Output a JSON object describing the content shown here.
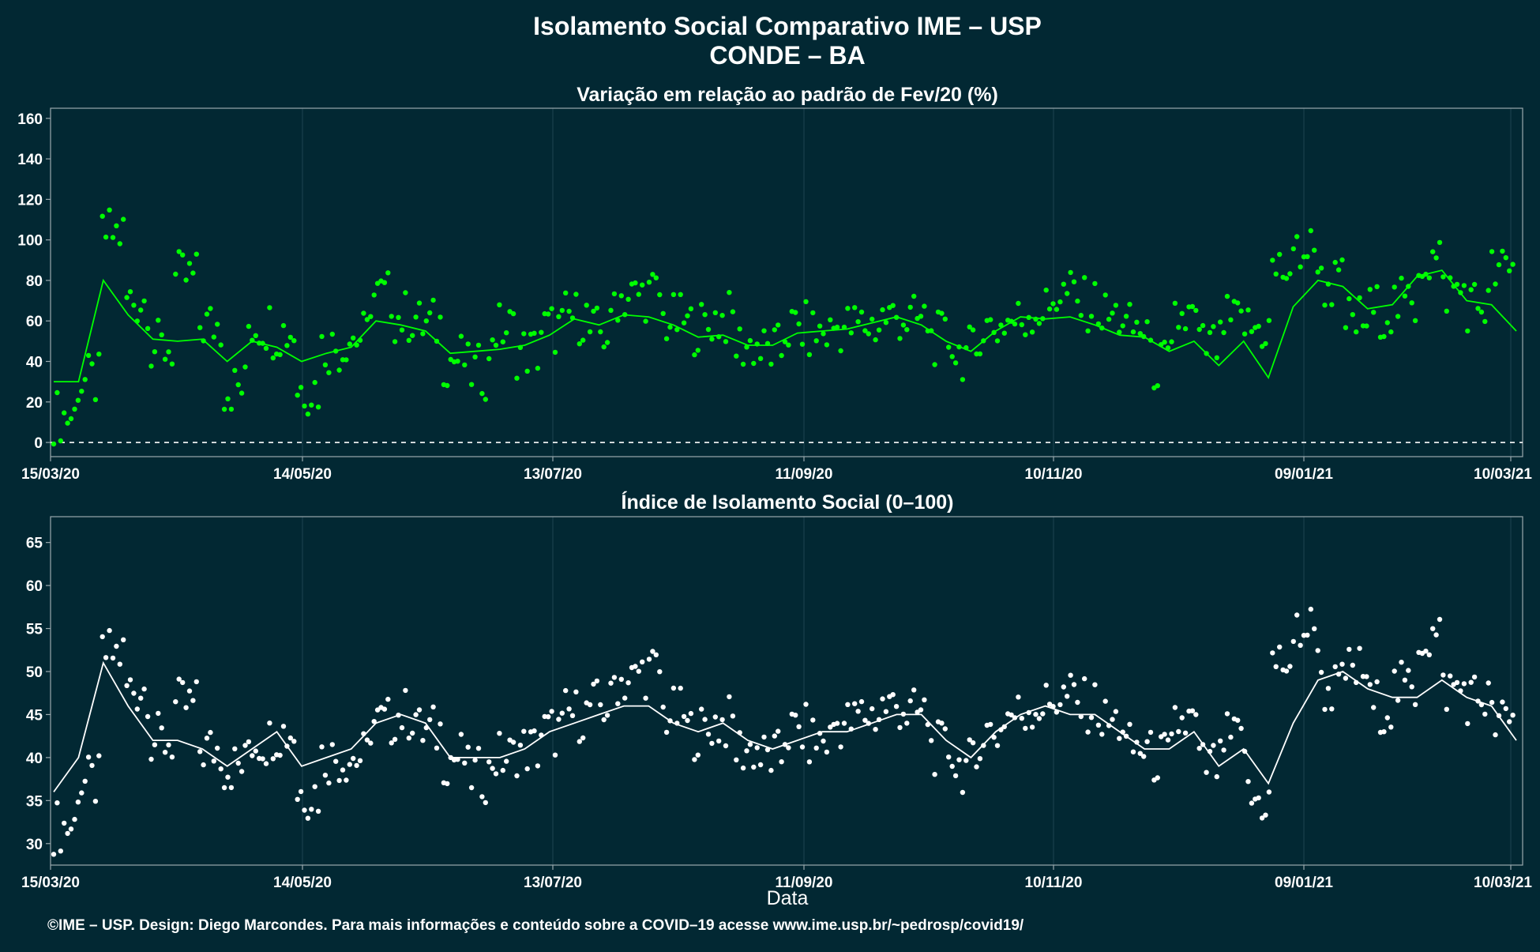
{
  "page": {
    "title_line1": "Isolamento Social Comparativo IME – USP",
    "title_line2": "CONDE – BA",
    "xlabel": "Data",
    "footer": "©IME – USP. Design: Diego Marcondes. Para mais informações e conteúdo sobre a COVID–19 acesse www.ime.usp.br/~pedrosp/covid19/"
  },
  "colors": {
    "background": "#022833",
    "grid": "#1e4452",
    "top_series": "#00ff00",
    "bottom_series": "#ffffff"
  },
  "x_ticks": [
    "15/03/20",
    "14/05/20",
    "13/07/20",
    "11/09/20",
    "10/11/20",
    "09/01/21",
    "10/03/21"
  ],
  "chart_data": [
    {
      "type": "scatter",
      "title": "Variação em relação ao padrão de Fev/20 (%)",
      "x_range": [
        "2020-03-15",
        "2021-03-10"
      ],
      "ylim": [
        -7,
        165
      ],
      "yticks": [
        0,
        20,
        40,
        60,
        80,
        100,
        120,
        140,
        160
      ],
      "reference_line": 0,
      "grid": true,
      "series": [
        {
          "kind": "points",
          "weekly_values": [
            13,
            30,
            103,
            70,
            47,
            81,
            58,
            27,
            58,
            55,
            27,
            47,
            52,
            72,
            62,
            58,
            41,
            35,
            56,
            45,
            56,
            62,
            54,
            72,
            73,
            60,
            57,
            61,
            48,
            45,
            56,
            54,
            57,
            58,
            62,
            60,
            51,
            44,
            57,
            60,
            65,
            73,
            68,
            62,
            56,
            38,
            61,
            47,
            59,
            56,
            85,
            95,
            78,
            60,
            65,
            68,
            90,
            75,
            68,
            84
          ]
        },
        {
          "kind": "moving-average",
          "weekly_values": [
            30,
            30,
            80,
            63,
            51,
            50,
            51,
            40,
            50,
            47,
            40,
            44,
            47,
            60,
            58,
            55,
            44,
            45,
            46,
            48,
            53,
            61,
            58,
            63,
            62,
            58,
            52,
            53,
            48,
            48,
            54,
            55,
            56,
            59,
            62,
            58,
            50,
            45,
            55,
            62,
            61,
            62,
            58,
            53,
            52,
            45,
            50,
            38,
            50,
            32,
            67,
            80,
            77,
            66,
            68,
            82,
            85,
            70,
            68,
            55
          ]
        }
      ]
    },
    {
      "type": "scatter",
      "title": "Índice de Isolamento Social (0–100)",
      "x_range": [
        "2020-03-15",
        "2021-03-10"
      ],
      "ylim": [
        27.5,
        68
      ],
      "yticks": [
        30,
        35,
        40,
        45,
        50,
        55,
        60,
        65
      ],
      "grid": true,
      "series": [
        {
          "kind": "points",
          "weekly_values": [
            32,
            37,
            52,
            48,
            42,
            46,
            41,
            39,
            42,
            43,
            36,
            40,
            40,
            44,
            45,
            43,
            40,
            38,
            40,
            41,
            43,
            45,
            46,
            49,
            50,
            45,
            43,
            44,
            41,
            40,
            43,
            42,
            44,
            45,
            46,
            45,
            41,
            39,
            43,
            45,
            46,
            47,
            46,
            44,
            41,
            40,
            44,
            39,
            42,
            35,
            51,
            55,
            48,
            50,
            46,
            48,
            54,
            48,
            47,
            44
          ]
        },
        {
          "kind": "moving-average",
          "weekly_values": [
            36,
            40,
            51,
            46,
            42,
            42,
            41,
            39,
            41,
            43,
            39,
            40,
            41,
            44,
            45,
            44,
            40,
            40,
            40,
            41,
            43,
            44,
            45,
            46,
            46,
            44,
            43,
            44,
            42,
            41,
            42,
            43,
            43,
            44,
            45,
            45,
            42,
            40,
            43,
            45,
            46,
            45,
            45,
            43,
            41,
            41,
            43,
            39,
            41,
            37,
            44,
            49,
            50,
            48,
            47,
            47,
            49,
            47,
            46,
            42
          ]
        }
      ]
    }
  ]
}
